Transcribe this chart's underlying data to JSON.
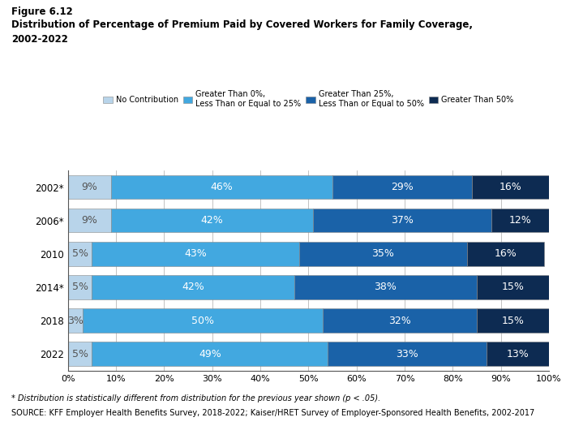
{
  "title_line1": "Figure 6.12",
  "title_line2": "Distribution of Percentage of Premium Paid by Covered Workers for Family Coverage,",
  "title_line3": "2002-2022",
  "years": [
    "2002*",
    "2006*",
    "2010",
    "2014*",
    "2018",
    "2022"
  ],
  "colors": [
    "#b8d4ea",
    "#42a8e0",
    "#1a62a8",
    "#0d2b52"
  ],
  "data": [
    [
      9,
      46,
      29,
      16
    ],
    [
      9,
      42,
      37,
      12
    ],
    [
      5,
      43,
      35,
      16
    ],
    [
      5,
      42,
      38,
      15
    ],
    [
      3,
      50,
      32,
      15
    ],
    [
      5,
      49,
      33,
      13
    ]
  ],
  "label_colors": [
    "#555555",
    "#ffffff",
    "#ffffff",
    "#ffffff"
  ],
  "xlabel_ticks": [
    0,
    10,
    20,
    30,
    40,
    50,
    60,
    70,
    80,
    90,
    100
  ],
  "xlabel_labels": [
    "0%",
    "10%",
    "20%",
    "30%",
    "40%",
    "50%",
    "60%",
    "70%",
    "80%",
    "90%",
    "100%"
  ],
  "footnote1": "* Distribution is statistically different from distribution for the previous year shown (p < .05).",
  "footnote2": "SOURCE: KFF Employer Health Benefits Survey, 2018-2022; Kaiser/HRET Survey of Employer-Sponsored Health Benefits, 2002-2017",
  "legend_labels": [
    "No Contribution",
    "Greater Than 0%,\nLess Than or Equal to 25%",
    "Greater Than 25%,\nLess Than or Equal to 50%",
    "Greater Than 50%"
  ],
  "bar_height": 0.72,
  "background_color": "#ffffff"
}
